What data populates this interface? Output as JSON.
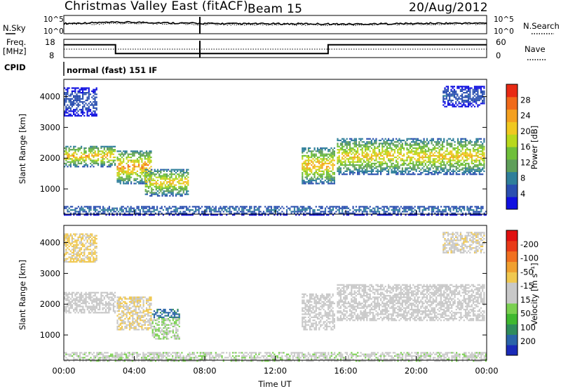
{
  "header": {
    "title": "Christmas Valley East (fitACF)",
    "beam": "Beam 15",
    "date": "20/Aug/2012"
  },
  "left_labels": {
    "nsky": "N.Sky",
    "freq_line1": "Freq.",
    "freq_line2": "[MHz]",
    "cpid": "CPID"
  },
  "right_labels": {
    "nsearch": "N.Search",
    "nave": "Nave"
  },
  "ticks": {
    "noise_top": "10^5",
    "noise_bottom": "10^0",
    "freq_top": "18",
    "freq_bottom": "8",
    "nave_top": "60",
    "nave_bottom": "0"
  },
  "cpid_text": "normal (fast) 151 IF",
  "colorbars": {
    "power": {
      "label": "Power [dB]",
      "ticks": [
        "4",
        "8",
        "12",
        "16",
        "20",
        "24",
        "28"
      ],
      "colors": [
        "#1010e0",
        "#2a4fb0",
        "#2f7f9a",
        "#5f9f5a",
        "#6fbf3a",
        "#b8d81c",
        "#f0c820",
        "#f4a020",
        "#f06a1a",
        "#e82a14"
      ]
    },
    "velocity": {
      "label": "Velocity [m s⁻¹]",
      "ticks": [
        "200",
        "100",
        "50",
        "15",
        "-15",
        "-50",
        "-100",
        "-200"
      ],
      "colors": [
        "#1a2ab8",
        "#2a64a8",
        "#2f8c5c",
        "#3fb830",
        "#7ad050",
        "#c8c8c8",
        "#c8c8c8",
        "#f0c850",
        "#f0a030",
        "#f07020",
        "#e83a18",
        "#e01010"
      ]
    }
  },
  "chart_data": [
    {
      "type": "line",
      "name": "noise-panel",
      "ylabel_left": "N.Sky",
      "ylabel_right": "N.Search",
      "ylim": [
        "10^0",
        "10^5"
      ],
      "x": [
        "00:00",
        "02:00",
        "04:00",
        "06:00",
        "08:00",
        "10:00",
        "12:00",
        "14:00",
        "16:00",
        "18:00",
        "20:00",
        "22:00",
        "24:00"
      ],
      "series": [
        {
          "values": [
            2.6,
            2.9,
            3.0,
            2.8,
            2.6,
            2.5,
            2.5,
            2.5,
            2.4,
            2.5,
            2.6,
            2.7,
            2.7
          ]
        },
        {
          "values": [
            2.3,
            2.5,
            2.7,
            2.5,
            2.3,
            2.2,
            2.2,
            2.2,
            2.1,
            2.2,
            2.3,
            2.4,
            2.4
          ]
        }
      ]
    },
    {
      "type": "line",
      "name": "frequency-panel",
      "ylabel": "Freq. [MHz]",
      "ylim": [
        8,
        18
      ],
      "y2lim": [
        0,
        60
      ],
      "segments": [
        {
          "start": "00:00",
          "end": "02:56",
          "freq": 15.0
        },
        {
          "start": "02:56",
          "end": "15:00",
          "freq": 10.2
        },
        {
          "start": "15:00",
          "end": "24:00",
          "freq": 15.0
        }
      ]
    },
    {
      "type": "heatmap",
      "name": "power-panel",
      "xlabel": "",
      "ylabel": "Slant Range [km]",
      "ylim": [
        180,
        4560
      ],
      "yticks": [
        1000,
        2000,
        3000,
        4000
      ],
      "clim": [
        0,
        31
      ],
      "colorbar": "Power [dB]",
      "features": [
        {
          "t0": 0.0,
          "t1": 2.95,
          "r0": 1750,
          "r1": 2450,
          "peak": 24
        },
        {
          "t0": 3.0,
          "t1": 5.0,
          "r0": 1200,
          "r1": 2300,
          "peak": 26
        },
        {
          "t0": 4.6,
          "t1": 7.1,
          "r0": 800,
          "r1": 1700,
          "peak": 22
        },
        {
          "t0": 13.5,
          "t1": 15.4,
          "r0": 1200,
          "r1": 2400,
          "peak": 24
        },
        {
          "t0": 15.5,
          "t1": 23.9,
          "r0": 1500,
          "r1": 2700,
          "peak": 22
        },
        {
          "t0": 0.0,
          "t1": 1.9,
          "r0": 3400,
          "r1": 4350,
          "peak": 6
        },
        {
          "t0": 21.5,
          "t1": 23.9,
          "r0": 3700,
          "r1": 4400,
          "peak": 6
        },
        {
          "t0": 0.0,
          "t1": 24.0,
          "r0": 180,
          "r1": 500,
          "peak": 8
        }
      ]
    },
    {
      "type": "heatmap",
      "name": "velocity-panel",
      "xlabel": "Time UT",
      "ylabel": "Slant Range [km]",
      "xticks": [
        "00:00",
        "04:00",
        "08:00",
        "12:00",
        "16:00",
        "20:00",
        "00:00"
      ],
      "ylim": [
        180,
        4560
      ],
      "yticks": [
        1000,
        2000,
        3000,
        4000
      ],
      "clim": [
        -250,
        250
      ],
      "colorbar": "Velocity [m s⁻¹]",
      "features": [
        {
          "t0": 0.0,
          "t1": 2.95,
          "r0": 1750,
          "r1": 2450,
          "vel": 0
        },
        {
          "t0": 3.0,
          "t1": 5.0,
          "r0": 1200,
          "r1": 2300,
          "vel": -40
        },
        {
          "t0": 5.0,
          "t1": 6.6,
          "r0": 900,
          "r1": 1600,
          "vel": 40
        },
        {
          "t0": 5.0,
          "t1": 6.6,
          "r0": 1600,
          "r1": 1900,
          "vel": 180
        },
        {
          "t0": 13.5,
          "t1": 15.4,
          "r0": 1200,
          "r1": 2400,
          "vel": 0
        },
        {
          "t0": 15.5,
          "t1": 23.9,
          "r0": 1500,
          "r1": 2700,
          "vel": 0
        },
        {
          "t0": 0.0,
          "t1": 1.9,
          "r0": 3400,
          "r1": 4350,
          "vel": -50
        },
        {
          "t0": 21.5,
          "t1": 23.9,
          "r0": 3700,
          "r1": 4400,
          "vel": -30
        },
        {
          "t0": 0.0,
          "t1": 24.0,
          "r0": 180,
          "r1": 500,
          "vel": 30
        }
      ]
    }
  ]
}
